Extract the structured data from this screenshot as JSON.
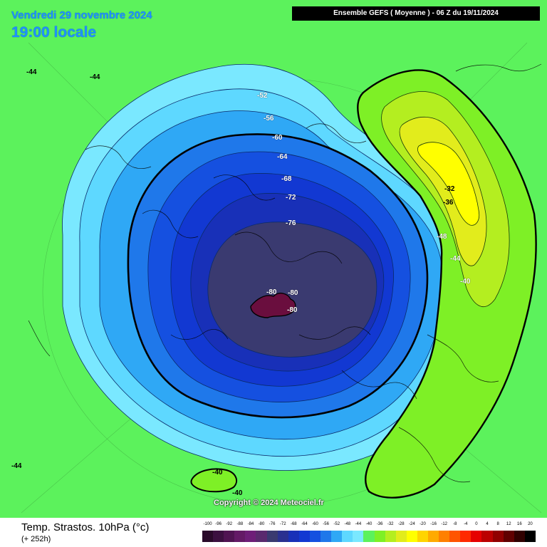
{
  "header": {
    "date_line": "Vendredi 29 novembre 2024",
    "time_line": "19:00 locale",
    "run_info": "Ensemble GEFS  ( Moyenne )  -  06 Z du 19/11/2024"
  },
  "map": {
    "copyright": "Copyright © 2024 Meteociel.fr",
    "contour_labels": [
      {
        "text": "-44",
        "tone": "dark"
      },
      {
        "text": "-44",
        "tone": "dark"
      },
      {
        "text": "-52",
        "tone": "light"
      },
      {
        "text": "-56",
        "tone": "light"
      },
      {
        "text": "-60",
        "tone": "light"
      },
      {
        "text": "-64",
        "tone": "light"
      },
      {
        "text": "-68",
        "tone": "light"
      },
      {
        "text": "-72",
        "tone": "light"
      },
      {
        "text": "-76",
        "tone": "light"
      },
      {
        "text": "-80",
        "tone": "light"
      },
      {
        "text": "-80",
        "tone": "light"
      },
      {
        "text": "-80",
        "tone": "light"
      },
      {
        "text": "-32",
        "tone": "dark"
      },
      {
        "text": "-36",
        "tone": "dark"
      },
      {
        "text": "-48",
        "tone": "light"
      },
      {
        "text": "-44",
        "tone": "light"
      },
      {
        "text": "-40",
        "tone": "light"
      },
      {
        "text": "-44",
        "tone": "dark"
      },
      {
        "text": "-40",
        "tone": "dark"
      },
      {
        "text": "-40",
        "tone": "dark"
      }
    ],
    "colors": {
      "background": "#5cf25c",
      "ring_minus56": "#5ed8ff",
      "ring_minus60": "#2fa8f5",
      "ring_minus64": "#1f78ea",
      "ring_minus68": "#1550e0",
      "ring_minus72": "#1238d2",
      "ring_minus76": "#1830b8",
      "core_minus80": "#3a3a70",
      "core_minus84": "#6a0e3e",
      "warm_minus40": "#7ef026",
      "warm_minus36": "#b4ee20",
      "warm_minus32": "#e2ec1c",
      "warm_minus28": "#ffff00"
    }
  },
  "footer": {
    "product_name": "Temp. Strastos. 10hPa (°c)",
    "lead_time": "(+ 252h)",
    "scale_labels": [
      "-100",
      "-96",
      "-92",
      "-88",
      "-84",
      "-80",
      "-76",
      "-72",
      "-68",
      "-64",
      "-60",
      "-56",
      "-52",
      "-48",
      "-44",
      "-40",
      "-36",
      "-32",
      "-28",
      "-24",
      "-20",
      "-16",
      "-12",
      "-8",
      "-4",
      "0",
      "4",
      "8",
      "12",
      "16",
      "20"
    ],
    "scale_colors": [
      "#2a0a2a",
      "#3c1040",
      "#501452",
      "#641a66",
      "#6e1e78",
      "#5a2a6e",
      "#3a3a70",
      "#2a3090",
      "#1830b8",
      "#1238d2",
      "#1550e0",
      "#1f78ea",
      "#2fa8f5",
      "#5ed8ff",
      "#7ae8ff",
      "#5cf25c",
      "#7ef026",
      "#b4ee20",
      "#e2ec1c",
      "#ffff00",
      "#ffd400",
      "#ffaa00",
      "#ff8000",
      "#ff5500",
      "#ff2a00",
      "#e60000",
      "#bb0000",
      "#900000",
      "#600000",
      "#300000",
      "#000000"
    ]
  }
}
